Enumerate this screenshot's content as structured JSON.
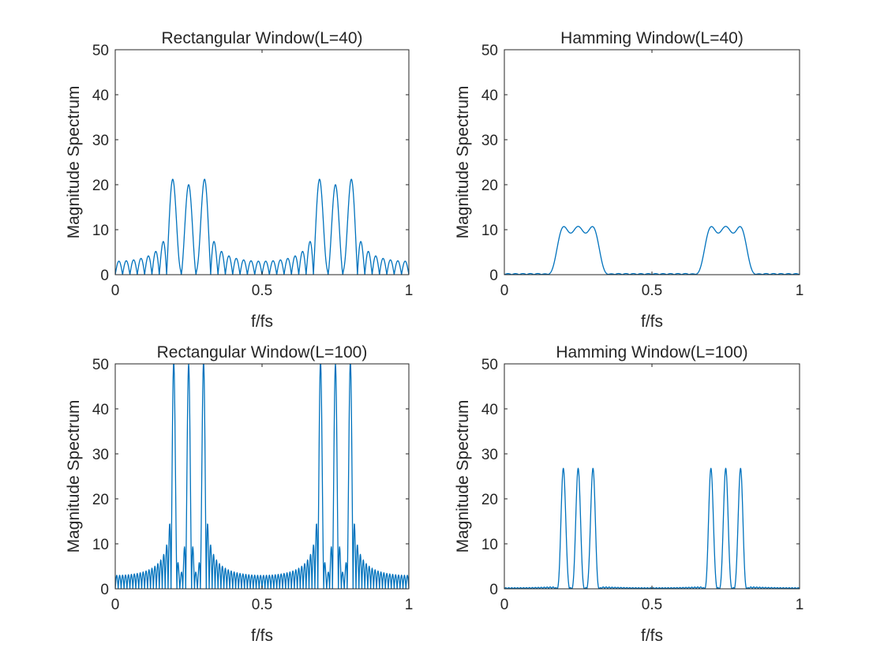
{
  "figure": {
    "line_color": "#0072BD",
    "axis_color": "#262626",
    "background": "#ffffff"
  },
  "chart_data": [
    {
      "type": "line",
      "title": "Rectangular Window(L=40)",
      "xlabel": "f/fs",
      "ylabel": "Magnitude Spectrum",
      "xlim": [
        0,
        1
      ],
      "ylim": [
        0,
        50
      ],
      "xticks": [
        0,
        0.5,
        1
      ],
      "xtick_labels": [
        "0",
        "0.5",
        "1"
      ],
      "yticks": [
        0,
        10,
        20,
        30,
        40,
        50
      ],
      "ytick_labels": [
        "0",
        "10",
        "20",
        "30",
        "40",
        "50"
      ],
      "grid": false,
      "window": "rectangular",
      "L": 40,
      "peaks": [
        0.2,
        0.25,
        0.3
      ],
      "peak_height": 21.1,
      "series": [
        {
          "values": []
        }
      ]
    },
    {
      "type": "line",
      "title": "Hamming Window(L=40)",
      "xlabel": "f/fs",
      "ylabel": "Magnitude Spectrum",
      "xlim": [
        0,
        1
      ],
      "ylim": [
        0,
        50
      ],
      "xticks": [
        0,
        0.5,
        1
      ],
      "xtick_labels": [
        "0",
        "0.5",
        "1"
      ],
      "yticks": [
        0,
        10,
        20,
        30,
        40,
        50
      ],
      "ytick_labels": [
        "0",
        "10",
        "20",
        "30",
        "40",
        "50"
      ],
      "grid": false,
      "window": "hamming",
      "L": 40,
      "peaks": [
        0.2,
        0.25,
        0.3
      ],
      "peak_height": 10.6,
      "series": [
        {
          "values": []
        }
      ]
    },
    {
      "type": "line",
      "title": "Rectangular Window(L=100)",
      "xlabel": "f/fs",
      "ylabel": "Magnitude Spectrum",
      "xlim": [
        0,
        1
      ],
      "ylim": [
        0,
        50
      ],
      "xticks": [
        0,
        0.5,
        1
      ],
      "xtick_labels": [
        "0",
        "0.5",
        "1"
      ],
      "yticks": [
        0,
        10,
        20,
        30,
        40,
        50
      ],
      "ytick_labels": [
        "0",
        "10",
        "20",
        "30",
        "40",
        "50"
      ],
      "grid": false,
      "window": "rectangular",
      "L": 100,
      "peaks": [
        0.2,
        0.25,
        0.3
      ],
      "peak_height": 50,
      "series": [
        {
          "values": []
        }
      ]
    },
    {
      "type": "line",
      "title": "Hamming Window(L=100)",
      "xlabel": "f/fs",
      "ylabel": "Magnitude Spectrum",
      "xlim": [
        0,
        1
      ],
      "ylim": [
        0,
        50
      ],
      "xticks": [
        0,
        0.5,
        1
      ],
      "xtick_labels": [
        "0",
        "0.5",
        "1"
      ],
      "yticks": [
        0,
        10,
        20,
        30,
        40,
        50
      ],
      "ytick_labels": [
        "0",
        "10",
        "20",
        "30",
        "40",
        "50"
      ],
      "grid": false,
      "window": "hamming",
      "L": 100,
      "peaks": [
        0.2,
        0.25,
        0.3
      ],
      "peak_height": 26.5,
      "series": [
        {
          "values": []
        }
      ]
    }
  ]
}
